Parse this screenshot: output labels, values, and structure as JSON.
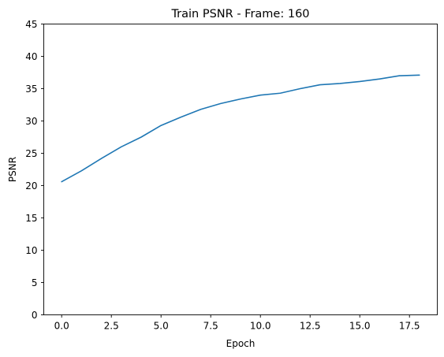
{
  "chart_data": {
    "type": "line",
    "title": "Train PSNR - Frame: 160",
    "xlabel": "Epoch",
    "ylabel": "PSNR",
    "xlim": [
      -0.9,
      18.9
    ],
    "ylim": [
      0,
      45
    ],
    "xticks": [
      0.0,
      2.5,
      5.0,
      7.5,
      10.0,
      12.5,
      15.0,
      17.5
    ],
    "xtick_labels": [
      "0.0",
      "2.5",
      "5.0",
      "7.5",
      "10.0",
      "12.5",
      "15.0",
      "17.5"
    ],
    "yticks": [
      0,
      5,
      10,
      15,
      20,
      25,
      30,
      35,
      40,
      45
    ],
    "ytick_labels": [
      "0",
      "5",
      "10",
      "15",
      "20",
      "25",
      "30",
      "35",
      "40",
      "45"
    ],
    "grid": false,
    "series": [
      {
        "color": "#1f77b4",
        "x": [
          0,
          1,
          2,
          3,
          4,
          5,
          6,
          7,
          8,
          9,
          10,
          11,
          12,
          13,
          14,
          15,
          16,
          17,
          18
        ],
        "y": [
          20.6,
          22.3,
          24.2,
          26.0,
          27.5,
          29.3,
          30.6,
          31.8,
          32.7,
          33.4,
          34.0,
          34.3,
          35.0,
          35.6,
          35.8,
          36.1,
          36.5,
          37.0,
          37.1
        ]
      }
    ]
  }
}
